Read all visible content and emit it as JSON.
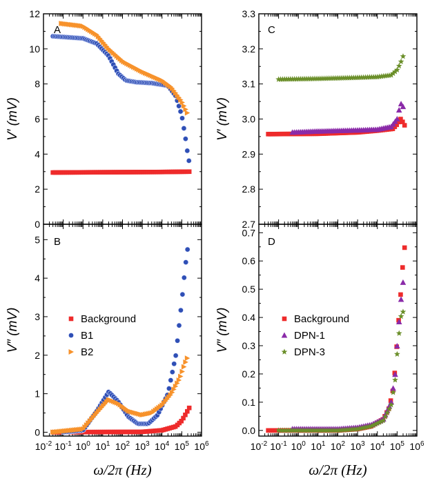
{
  "colors": {
    "background_series": "#ee2b2b",
    "b1_series": "#2f4fb5",
    "b2_series": "#f7922b",
    "dpn1_series": "#8a2aa8",
    "dpn3_series": "#6b8f2a"
  },
  "chart_data": [
    {
      "panel": "A",
      "type": "scatter",
      "xscale": "log",
      "xlim": [
        0.01,
        1000000
      ],
      "ylim": [
        0,
        12
      ],
      "yticks": [
        0,
        2,
        4,
        6,
        8,
        10,
        12
      ],
      "ytick_labels": [
        "0",
        "2",
        "4",
        "6",
        "8",
        "10",
        "12"
      ],
      "ylabel": "V′ (mV)",
      "xlabel": "",
      "series": [
        {
          "key": "background",
          "marker": "square",
          "color_key": "background_series",
          "x_range": [
            0.03,
            250000
          ],
          "points": [
            [
              0.03,
              2.95
            ],
            [
              1,
              2.96
            ],
            [
              100,
              2.97
            ],
            [
              10000,
              2.98
            ],
            [
              250000,
              3.0
            ]
          ]
        },
        {
          "key": "b1",
          "marker": "circle",
          "color_key": "b1_series",
          "x_range": [
            0.03,
            250000
          ],
          "points": [
            [
              0.03,
              10.72
            ],
            [
              1,
              10.6
            ],
            [
              5,
              10.3
            ],
            [
              20,
              9.6
            ],
            [
              60,
              8.6
            ],
            [
              150,
              8.2
            ],
            [
              500,
              8.1
            ],
            [
              3000,
              8.05
            ],
            [
              20000,
              7.9
            ],
            [
              50000,
              7.3
            ],
            [
              100000,
              6.2
            ],
            [
              150000,
              5.0
            ],
            [
              200000,
              4.0
            ],
            [
              250000,
              3.4
            ]
          ]
        },
        {
          "key": "b2",
          "marker": "triangle-right",
          "color_key": "b2_series",
          "x_range": [
            0.08,
            220000
          ],
          "points": [
            [
              0.08,
              11.45
            ],
            [
              1,
              11.3
            ],
            [
              5,
              10.8
            ],
            [
              20,
              10.0
            ],
            [
              100,
              9.3
            ],
            [
              1000,
              8.7
            ],
            [
              10000,
              8.2
            ],
            [
              30000,
              7.8
            ],
            [
              100000,
              7.0
            ],
            [
              220000,
              6.2
            ]
          ]
        }
      ]
    },
    {
      "panel": "B",
      "type": "scatter",
      "xscale": "log",
      "xlim": [
        0.01,
        1000000
      ],
      "ylim": [
        -0.1,
        5.4
      ],
      "yticks": [
        0,
        1,
        2,
        3,
        4,
        5
      ],
      "ytick_labels": [
        "0",
        "1",
        "2",
        "3",
        "4",
        "5"
      ],
      "xticks": [
        0.01,
        0.1,
        1,
        10,
        100,
        1000,
        10000,
        100000,
        1000000
      ],
      "xtick_labels": [
        "10-2",
        "10-1",
        "100",
        "101",
        "102",
        "103",
        "104",
        "105",
        "106"
      ],
      "ylabel": "V″ (mV)",
      "xlabel": "ω/2π (Hz)",
      "legend": [
        {
          "key": "background",
          "label": "Background"
        },
        {
          "key": "b1",
          "label": "B1"
        },
        {
          "key": "b2",
          "label": "B2"
        }
      ],
      "series": [
        {
          "key": "background",
          "marker": "square",
          "color_key": "background_series",
          "x_range": [
            0.03,
            250000
          ],
          "points": [
            [
              0.03,
              0.0
            ],
            [
              1000,
              0.01
            ],
            [
              10000,
              0.05
            ],
            [
              50000,
              0.15
            ],
            [
              100000,
              0.3
            ],
            [
              150000,
              0.45
            ],
            [
              250000,
              0.65
            ]
          ]
        },
        {
          "key": "b1",
          "marker": "circle",
          "color_key": "b1_series",
          "x_range": [
            0.1,
            220000
          ],
          "points": [
            [
              0.1,
              0.0
            ],
            [
              1,
              0.05
            ],
            [
              5,
              0.55
            ],
            [
              20,
              1.05
            ],
            [
              60,
              0.8
            ],
            [
              200,
              0.4
            ],
            [
              600,
              0.22
            ],
            [
              2000,
              0.22
            ],
            [
              6000,
              0.45
            ],
            [
              20000,
              1.0
            ],
            [
              50000,
              2.0
            ],
            [
              100000,
              3.4
            ],
            [
              150000,
              4.3
            ],
            [
              220000,
              4.95
            ]
          ]
        },
        {
          "key": "b2",
          "marker": "triangle-right",
          "color_key": "b2_series",
          "x_range": [
            0.03,
            220000
          ],
          "points": [
            [
              0.03,
              0.0
            ],
            [
              1,
              0.08
            ],
            [
              5,
              0.5
            ],
            [
              20,
              0.85
            ],
            [
              60,
              0.75
            ],
            [
              200,
              0.55
            ],
            [
              1000,
              0.45
            ],
            [
              3000,
              0.5
            ],
            [
              10000,
              0.7
            ],
            [
              30000,
              1.0
            ],
            [
              80000,
              1.4
            ],
            [
              150000,
              1.8
            ],
            [
              220000,
              2.0
            ]
          ]
        }
      ]
    },
    {
      "panel": "C",
      "type": "scatter",
      "xscale": "log",
      "xlim": [
        0.01,
        1000000
      ],
      "ylim": [
        2.7,
        3.3
      ],
      "yticks": [
        2.7,
        2.8,
        2.9,
        3.0,
        3.1,
        3.2,
        3.3
      ],
      "ytick_labels": [
        "2.7",
        "2.8",
        "2.9",
        "3.0",
        "3.1",
        "3.2",
        "3.3"
      ],
      "ylabel": "V′ (mV)",
      "xlabel": "",
      "series": [
        {
          "key": "background",
          "marker": "square",
          "color_key": "background_series",
          "x_range": [
            0.03,
            250000
          ],
          "points": [
            [
              0.03,
              2.957
            ],
            [
              10,
              2.958
            ],
            [
              1000,
              2.962
            ],
            [
              10000,
              2.967
            ],
            [
              60000,
              2.972
            ],
            [
              100000,
              2.985
            ],
            [
              150000,
              3.0
            ],
            [
              200000,
              2.99
            ],
            [
              250000,
              2.98
            ]
          ]
        },
        {
          "key": "dpn1",
          "marker": "triangle-up",
          "color_key": "dpn1_series",
          "x_range": [
            0.5,
            230000
          ],
          "points": [
            [
              0.5,
              2.962
            ],
            [
              10,
              2.965
            ],
            [
              1000,
              2.968
            ],
            [
              10000,
              2.97
            ],
            [
              50000,
              2.978
            ],
            [
              100000,
              3.0
            ],
            [
              150000,
              3.045
            ],
            [
              230000,
              3.03
            ]
          ]
        },
        {
          "key": "dpn3",
          "marker": "star",
          "color_key": "dpn3_series",
          "x_range": [
            0.1,
            220000
          ],
          "points": [
            [
              0.1,
              3.113
            ],
            [
              10,
              3.115
            ],
            [
              1000,
              3.118
            ],
            [
              10000,
              3.12
            ],
            [
              50000,
              3.125
            ],
            [
              100000,
              3.14
            ],
            [
              150000,
              3.16
            ],
            [
              220000,
              3.185
            ]
          ]
        }
      ]
    },
    {
      "panel": "D",
      "type": "scatter",
      "xscale": "log",
      "xlim": [
        0.01,
        1000000
      ],
      "ylim": [
        -0.02,
        0.73
      ],
      "yticks": [
        0.0,
        0.1,
        0.2,
        0.3,
        0.4,
        0.5,
        0.6,
        0.7
      ],
      "ytick_labels": [
        "0.0",
        "0.1",
        "0.2",
        "0.3",
        "0.4",
        "0.5",
        "0.6",
        "0.7"
      ],
      "xticks": [
        0.01,
        0.1,
        1,
        10,
        100,
        1000,
        10000,
        100000,
        1000000
      ],
      "xtick_labels": [
        "10-2",
        "10-1",
        "100",
        "101",
        "102",
        "103",
        "104",
        "105",
        "106"
      ],
      "ylabel": "V″ (mV)",
      "xlabel": "ω/2π (Hz)",
      "legend": [
        {
          "key": "background",
          "label": "Background"
        },
        {
          "key": "dpn1",
          "label": "DPN-1"
        },
        {
          "key": "dpn3",
          "label": "DPN-3"
        }
      ],
      "series": [
        {
          "key": "background",
          "marker": "square",
          "color_key": "background_series",
          "x_range": [
            0.03,
            250000
          ],
          "points": [
            [
              0.03,
              0.0
            ],
            [
              100,
              0.0
            ],
            [
              1000,
              0.005
            ],
            [
              5000,
              0.015
            ],
            [
              20000,
              0.04
            ],
            [
              40000,
              0.08
            ],
            [
              60000,
              0.14
            ],
            [
              80000,
              0.22
            ],
            [
              100000,
              0.32
            ],
            [
              150000,
              0.48
            ],
            [
              200000,
              0.6
            ],
            [
              250000,
              0.66
            ]
          ]
        },
        {
          "key": "dpn1",
          "marker": "triangle-up",
          "color_key": "dpn1_series",
          "x_range": [
            0.5,
            220000
          ],
          "points": [
            [
              0.5,
              0.005
            ],
            [
              100,
              0.005
            ],
            [
              1000,
              0.01
            ],
            [
              5000,
              0.02
            ],
            [
              20000,
              0.04
            ],
            [
              50000,
              0.1
            ],
            [
              80000,
              0.2
            ],
            [
              100000,
              0.3
            ],
            [
              150000,
              0.45
            ],
            [
              220000,
              0.55
            ]
          ]
        },
        {
          "key": "dpn3",
          "marker": "star",
          "color_key": "dpn3_series",
          "x_range": [
            0.1,
            200000
          ],
          "points": [
            [
              0.1,
              0.0
            ],
            [
              100,
              0.0
            ],
            [
              1000,
              0.005
            ],
            [
              5000,
              0.015
            ],
            [
              20000,
              0.035
            ],
            [
              50000,
              0.09
            ],
            [
              80000,
              0.18
            ],
            [
              100000,
              0.27
            ],
            [
              150000,
              0.4
            ],
            [
              200000,
              0.42
            ]
          ]
        }
      ]
    }
  ]
}
